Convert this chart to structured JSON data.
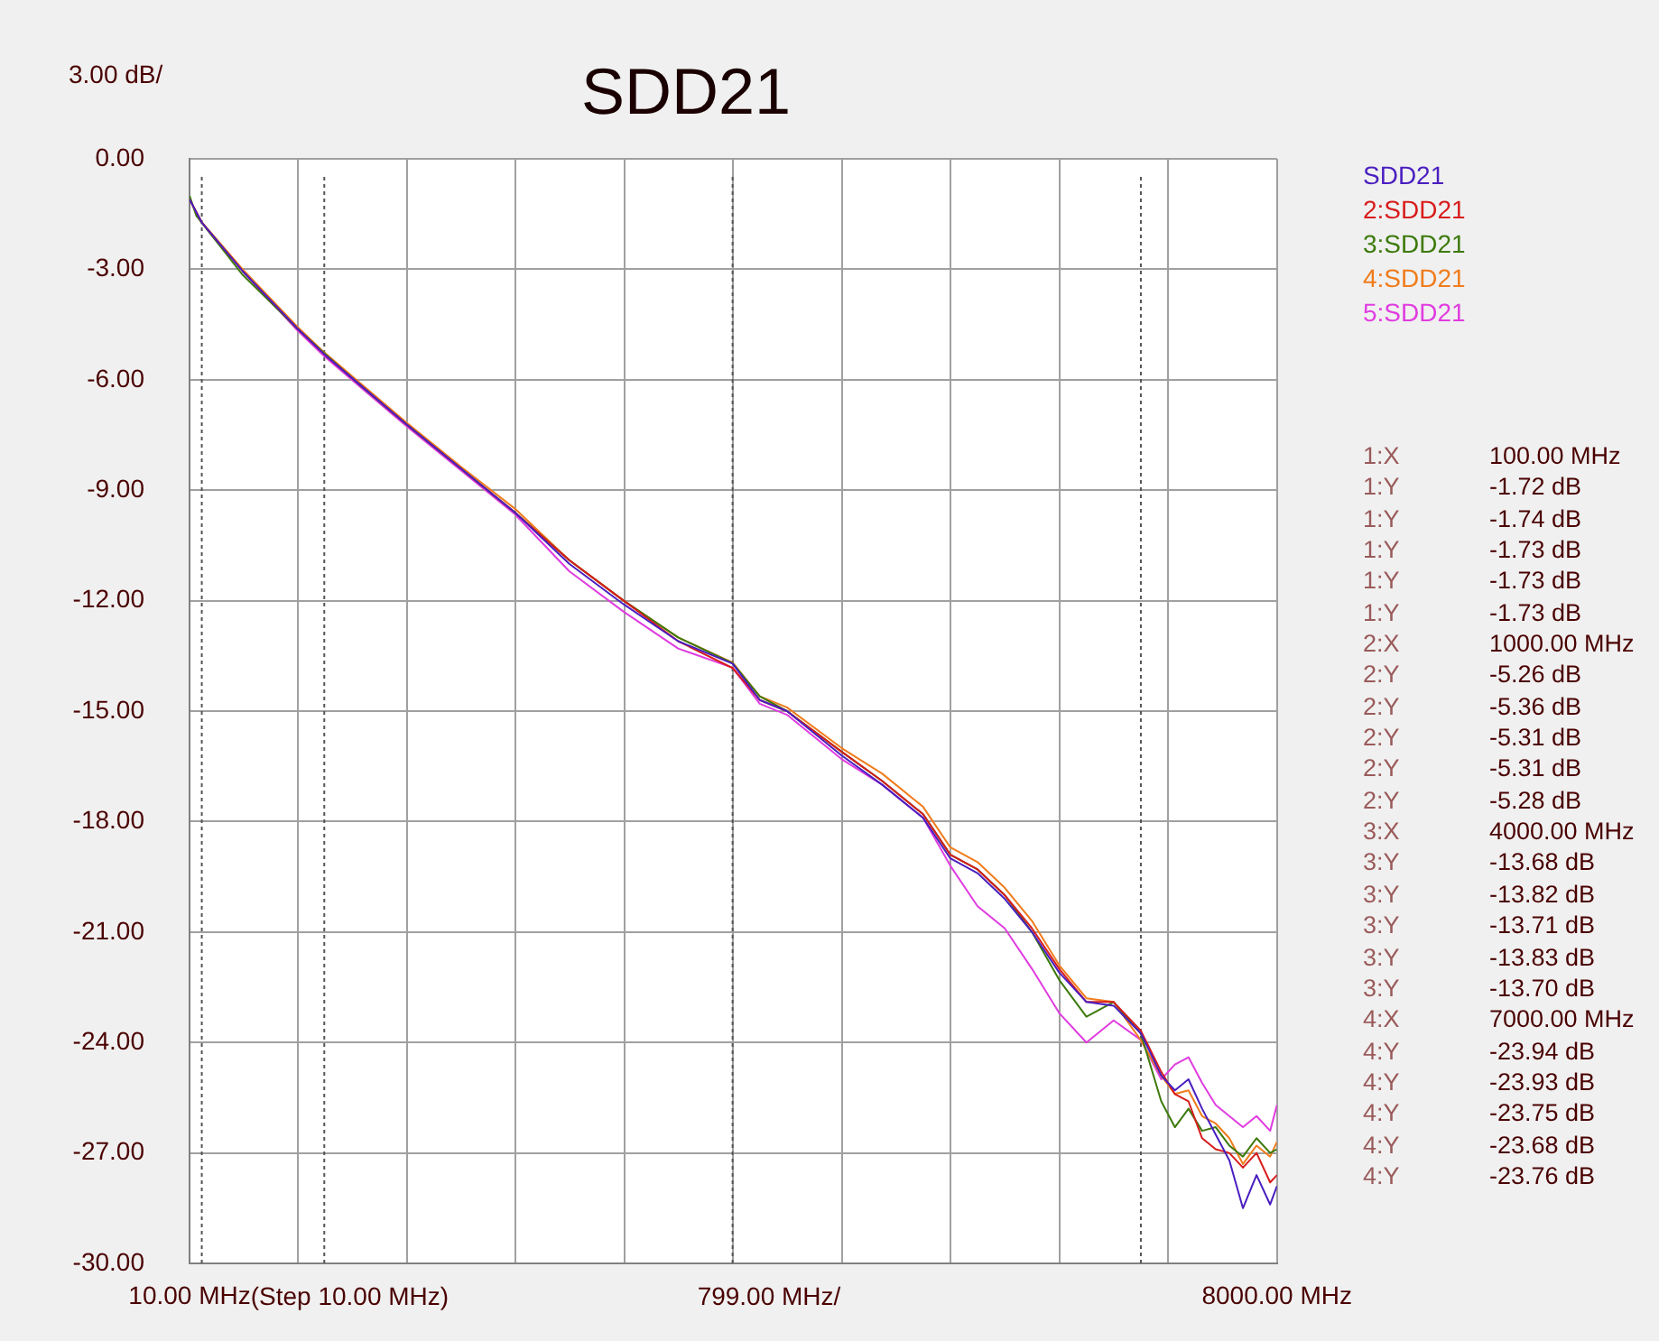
{
  "chart_data": {
    "type": "line",
    "title": "SDD21",
    "ylabel": "3.00 dB/",
    "xlabel": "799.00 MHz/",
    "x": [
      10,
      100,
      400,
      800,
      1000,
      1250,
      1600,
      2000,
      2400,
      2800,
      3200,
      3600,
      4000,
      4200,
      4400,
      4800,
      5100,
      5400,
      5600,
      5800,
      6000,
      6200,
      6400,
      6600,
      6800,
      7000,
      7150,
      7250,
      7350,
      7450,
      7550,
      7650,
      7750,
      7850,
      7950,
      8000
    ],
    "series": [
      {
        "name": "SDD21",
        "color": "#4a1ec0",
        "values": [
          -1.1,
          -1.73,
          -3.05,
          -4.6,
          -5.31,
          -6.1,
          -7.2,
          -8.4,
          -9.6,
          -11.0,
          -12.1,
          -13.1,
          -13.71,
          -14.7,
          -15.0,
          -16.2,
          -17.0,
          -17.9,
          -19.0,
          -19.4,
          -20.1,
          -21.0,
          -22.1,
          -22.9,
          -23.0,
          -23.75,
          -24.9,
          -25.3,
          -25.0,
          -25.8,
          -26.5,
          -27.2,
          -28.5,
          -27.6,
          -28.4,
          -27.9
        ]
      },
      {
        "name": "2:SDD21",
        "color": "#d81c1c",
        "values": [
          -1.1,
          -1.73,
          -3.05,
          -4.6,
          -5.31,
          -6.1,
          -7.2,
          -8.4,
          -9.6,
          -10.9,
          -12.0,
          -13.1,
          -13.83,
          -14.7,
          -15.0,
          -16.1,
          -16.9,
          -17.8,
          -18.9,
          -19.3,
          -20.0,
          -20.9,
          -22.0,
          -22.9,
          -22.9,
          -23.68,
          -24.8,
          -25.4,
          -25.6,
          -26.6,
          -26.9,
          -27.0,
          -27.4,
          -27.0,
          -27.8,
          -27.6
        ]
      },
      {
        "name": "3:SDD21",
        "color": "#3c7a0c",
        "x": [
          10,
          60,
          400,
          800,
          1000,
          1250,
          1600,
          2000,
          2400,
          2800,
          3200,
          3600,
          4000,
          4200,
          4400,
          4800,
          5100,
          5400,
          5600,
          5800,
          6000,
          6200,
          6400,
          6600,
          6800,
          7000,
          7150,
          7250,
          7350,
          7450,
          7550,
          7650,
          7750,
          7850,
          7950,
          8000
        ],
        "values": [
          -1.0,
          -1.55,
          -3.15,
          -4.6,
          -5.28,
          -6.1,
          -7.2,
          -8.4,
          -9.6,
          -10.9,
          -12.0,
          -13.0,
          -13.7,
          -14.6,
          -15.0,
          -16.1,
          -16.9,
          -17.8,
          -18.9,
          -19.3,
          -20.0,
          -21.0,
          -22.3,
          -23.3,
          -22.9,
          -23.76,
          -25.6,
          -26.3,
          -25.8,
          -26.4,
          -26.3,
          -26.8,
          -27.1,
          -26.6,
          -27.0,
          -26.9
        ]
      },
      {
        "name": "4:SDD21",
        "color": "#f07c1c",
        "values": [
          -1.1,
          -1.72,
          -3.0,
          -4.55,
          -5.26,
          -6.05,
          -7.15,
          -8.35,
          -9.5,
          -10.9,
          -12.0,
          -13.0,
          -13.68,
          -14.6,
          -14.9,
          -16.0,
          -16.7,
          -17.6,
          -18.7,
          -19.1,
          -19.8,
          -20.7,
          -21.9,
          -22.8,
          -22.9,
          -23.94,
          -24.9,
          -25.4,
          -25.3,
          -26.0,
          -26.2,
          -26.6,
          -27.3,
          -26.8,
          -27.1,
          -26.7
        ]
      },
      {
        "name": "5:SDD21",
        "color": "#e03ce0",
        "values": [
          null,
          null,
          -3.05,
          -4.65,
          -5.36,
          -6.15,
          -7.25,
          -8.45,
          -9.65,
          -11.2,
          -12.3,
          -13.3,
          -13.82,
          -14.8,
          -15.1,
          -16.3,
          -17.0,
          -17.9,
          -19.2,
          -20.3,
          -20.9,
          -22.0,
          -23.2,
          -24.0,
          -23.4,
          -23.93,
          -25.0,
          -24.6,
          -24.4,
          -25.1,
          -25.7,
          -26.0,
          -26.3,
          -26.0,
          -26.4,
          -25.7
        ]
      }
    ],
    "xlim": [
      10,
      8000
    ],
    "xticks": [
      {
        "value": 10,
        "label": "10.00 MHz"
      },
      {
        "value": 809,
        "label": null
      },
      {
        "value": 1608,
        "label": null
      },
      {
        "value": 2407,
        "label": null
      },
      {
        "value": 3206,
        "label": null
      },
      {
        "value": 4005,
        "label": null
      },
      {
        "value": 4804,
        "label": null
      },
      {
        "value": 5603,
        "label": null
      },
      {
        "value": 6402,
        "label": null
      },
      {
        "value": 7201,
        "label": null
      },
      {
        "value": 8000,
        "label": "8000.00 MHz"
      }
    ],
    "ylim": [
      -30,
      0
    ],
    "yticks": [
      {
        "value": -30,
        "label": "-30.00"
      },
      {
        "value": -27,
        "label": "-27.00"
      },
      {
        "value": -24,
        "label": "-24.00"
      },
      {
        "value": -21,
        "label": "-21.00"
      },
      {
        "value": -18,
        "label": "-18.00"
      },
      {
        "value": -15,
        "label": "-15.00"
      },
      {
        "value": -12,
        "label": "-12.00"
      },
      {
        "value": -9,
        "label": "-9.00"
      },
      {
        "value": -6,
        "label": "-6.00"
      },
      {
        "value": -3,
        "label": "-3.00"
      },
      {
        "value": 0,
        "label": "0.00"
      }
    ],
    "grid": true,
    "legend": "top right",
    "marker": "none",
    "line_style": "solid",
    "ref_lines": [
      {
        "axis": "x",
        "value": 100,
        "color": "#555555",
        "line_style": "dotted"
      },
      {
        "axis": "x",
        "value": 1000,
        "color": "#555555",
        "line_style": "dotted"
      },
      {
        "axis": "x",
        "value": 4000,
        "color": "#555555",
        "line_style": "dotted"
      },
      {
        "axis": "x",
        "value": 7000,
        "color": "#555555",
        "line_style": "dotted"
      }
    ],
    "annotations": [
      "(Step 10.00 MHz)",
      "1:X 100.00 MHz",
      "1:Y -1.72 dB",
      "1:Y -1.74 dB",
      "1:Y -1.73 dB",
      "1:Y -1.73 dB",
      "1:Y -1.73 dB",
      "2:X 1000.00 MHz",
      "2:Y -5.26 dB",
      "2:Y -5.36 dB",
      "2:Y -5.31 dB",
      "2:Y -5.31 dB",
      "2:Y -5.28 dB",
      "3:X 4000.00 MHz",
      "3:Y -13.68 dB",
      "3:Y -13.82 dB",
      "3:Y -13.71 dB",
      "3:Y -13.83 dB",
      "3:Y -13.70 dB",
      "4:X 7000.00 MHz",
      "4:Y -23.94 dB",
      "4:Y -23.93 dB",
      "4:Y -23.75 dB",
      "4:Y -23.68 dB",
      "4:Y -23.76 dB"
    ]
  }
}
